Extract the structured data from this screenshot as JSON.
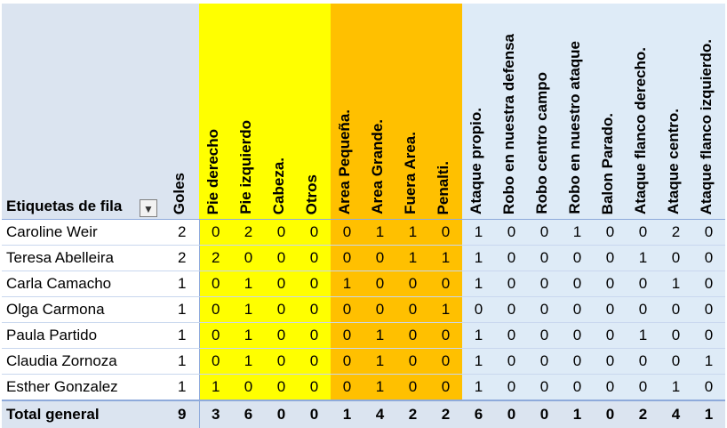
{
  "header": {
    "row_label": "Etiquetas de fila",
    "filter_icon": "sort-descending-filter-icon",
    "goles": "Goles",
    "columns": [
      "Pie derecho",
      "Pie izquierdo",
      "Cabeza.",
      "Otros",
      "Area Pequeña.",
      "Area Grande.",
      "Fuera Area.",
      "Penalti.",
      "Ataque propio.",
      "Robo en nuestra defensa",
      "Robo centro campo",
      "Robo en nuestro ataque",
      "Balon Parado.",
      "Ataque flanco derecho.",
      "Ataque centro.",
      "Ataque flanco izquierdo."
    ]
  },
  "colors": {
    "yellow_group": "#ffff00",
    "orange_group": "#ffc000",
    "blue_group": "#deebf7",
    "header_bg": "#dbe4f0"
  },
  "rows": [
    {
      "name": "Caroline Weir",
      "goles": "2",
      "values": [
        "0",
        "2",
        "0",
        "0",
        "0",
        "1",
        "1",
        "0",
        "1",
        "0",
        "0",
        "1",
        "0",
        "0",
        "2",
        "0"
      ]
    },
    {
      "name": "Teresa Abelleira",
      "goles": "2",
      "values": [
        "2",
        "0",
        "0",
        "0",
        "0",
        "0",
        "1",
        "1",
        "1",
        "0",
        "0",
        "0",
        "0",
        "1",
        "0",
        "0"
      ]
    },
    {
      "name": "Carla Camacho",
      "goles": "1",
      "values": [
        "0",
        "1",
        "0",
        "0",
        "1",
        "0",
        "0",
        "0",
        "1",
        "0",
        "0",
        "0",
        "0",
        "0",
        "1",
        "0"
      ]
    },
    {
      "name": "Olga Carmona",
      "goles": "1",
      "values": [
        "0",
        "1",
        "0",
        "0",
        "0",
        "0",
        "0",
        "1",
        "0",
        "0",
        "0",
        "0",
        "0",
        "0",
        "0",
        "0"
      ]
    },
    {
      "name": "Paula Partido",
      "goles": "1",
      "values": [
        "0",
        "1",
        "0",
        "0",
        "0",
        "1",
        "0",
        "0",
        "1",
        "0",
        "0",
        "0",
        "0",
        "1",
        "0",
        "0"
      ]
    },
    {
      "name": "Claudia Zornoza",
      "goles": "1",
      "values": [
        "0",
        "1",
        "0",
        "0",
        "0",
        "1",
        "0",
        "0",
        "1",
        "0",
        "0",
        "0",
        "0",
        "0",
        "0",
        "1"
      ]
    },
    {
      "name": "Esther Gonzalez",
      "goles": "1",
      "values": [
        "1",
        "0",
        "0",
        "0",
        "0",
        "1",
        "0",
        "0",
        "1",
        "0",
        "0",
        "0",
        "0",
        "0",
        "1",
        "0"
      ]
    }
  ],
  "total": {
    "name": "Total general",
    "goles": "9",
    "values": [
      "3",
      "6",
      "0",
      "0",
      "1",
      "4",
      "2",
      "2",
      "6",
      "0",
      "0",
      "1",
      "0",
      "2",
      "4",
      "1"
    ]
  }
}
